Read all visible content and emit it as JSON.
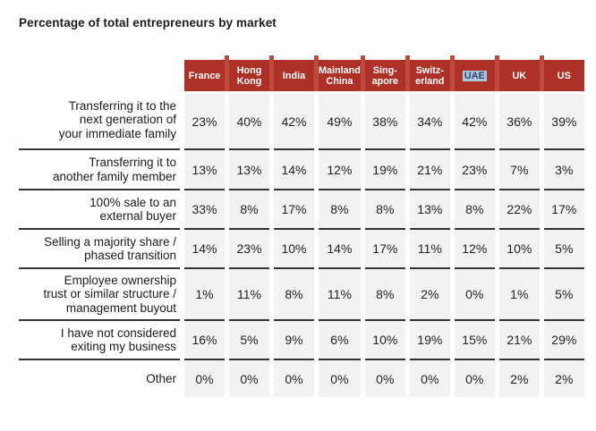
{
  "page": {
    "title": "Percentage of total entrepreneurs by market"
  },
  "colors": {
    "header_bg": "#AE3127",
    "header_gap": "#BD4A3D",
    "cell_bg": "#F2F2F2",
    "divider": "#333333",
    "header_text": "#FFFFFF",
    "highlight_bg": "#A9C6E3",
    "highlight_text": "#39455C"
  },
  "table": {
    "columns": [
      {
        "label": "France"
      },
      {
        "label": "Hong\nKong"
      },
      {
        "label": "India"
      },
      {
        "label": "Mainland\nChina"
      },
      {
        "label": "Sing-\napore"
      },
      {
        "label": "Switz-\nerland"
      },
      {
        "label": "UAE",
        "highlight": true
      },
      {
        "label": "UK"
      },
      {
        "label": "US"
      }
    ],
    "rows": [
      {
        "label": "Transferring it to the\nnext generation of\nyour immediate family",
        "values": [
          "23%",
          "40%",
          "42%",
          "49%",
          "38%",
          "34%",
          "42%",
          "36%",
          "39%"
        ]
      },
      {
        "label": "Transferring it to\nanother family member",
        "values": [
          "13%",
          "13%",
          "14%",
          "12%",
          "19%",
          "21%",
          "23%",
          "7%",
          "3%"
        ]
      },
      {
        "label": "100% sale to an\nexternal buyer",
        "values": [
          "33%",
          "8%",
          "17%",
          "8%",
          "8%",
          "13%",
          "8%",
          "22%",
          "17%"
        ]
      },
      {
        "label": "Selling a majority share /\nphased transition",
        "values": [
          "14%",
          "23%",
          "10%",
          "14%",
          "17%",
          "11%",
          "12%",
          "10%",
          "5%"
        ]
      },
      {
        "label": "Employee ownership\ntrust or similar structure /\nmanagement buyout",
        "values": [
          "1%",
          "11%",
          "8%",
          "11%",
          "8%",
          "2%",
          "0%",
          "1%",
          "5%"
        ]
      },
      {
        "label": "I have not considered\nexiting my business",
        "values": [
          "16%",
          "5%",
          "9%",
          "6%",
          "10%",
          "19%",
          "15%",
          "21%",
          "29%"
        ]
      },
      {
        "label": "Other",
        "values": [
          "0%",
          "0%",
          "0%",
          "0%",
          "0%",
          "0%",
          "0%",
          "2%",
          "2%"
        ]
      }
    ]
  },
  "chart_data": {
    "type": "table",
    "title": "Percentage of total entrepreneurs by market",
    "categories": [
      "France",
      "Hong Kong",
      "India",
      "Mainland China",
      "Singapore",
      "Switzerland",
      "UAE",
      "UK",
      "US"
    ],
    "highlighted_column": "UAE",
    "series": [
      {
        "name": "Transferring it to the next generation of your immediate family",
        "values": [
          23,
          40,
          42,
          49,
          38,
          34,
          42,
          36,
          39
        ]
      },
      {
        "name": "Transferring it to another family member",
        "values": [
          13,
          13,
          14,
          12,
          19,
          21,
          23,
          7,
          3
        ]
      },
      {
        "name": "100% sale to an external buyer",
        "values": [
          33,
          8,
          17,
          8,
          8,
          13,
          8,
          22,
          17
        ]
      },
      {
        "name": "Selling a majority share / phased transition",
        "values": [
          14,
          23,
          10,
          14,
          17,
          11,
          12,
          10,
          5
        ]
      },
      {
        "name": "Employee ownership trust or similar structure / management buyout",
        "values": [
          1,
          11,
          8,
          11,
          8,
          2,
          0,
          1,
          5
        ]
      },
      {
        "name": "I have not considered exiting my business",
        "values": [
          16,
          5,
          9,
          6,
          10,
          19,
          15,
          21,
          29
        ]
      },
      {
        "name": "Other",
        "values": [
          0,
          0,
          0,
          0,
          0,
          0,
          0,
          2,
          2
        ]
      }
    ],
    "unit": "%"
  }
}
